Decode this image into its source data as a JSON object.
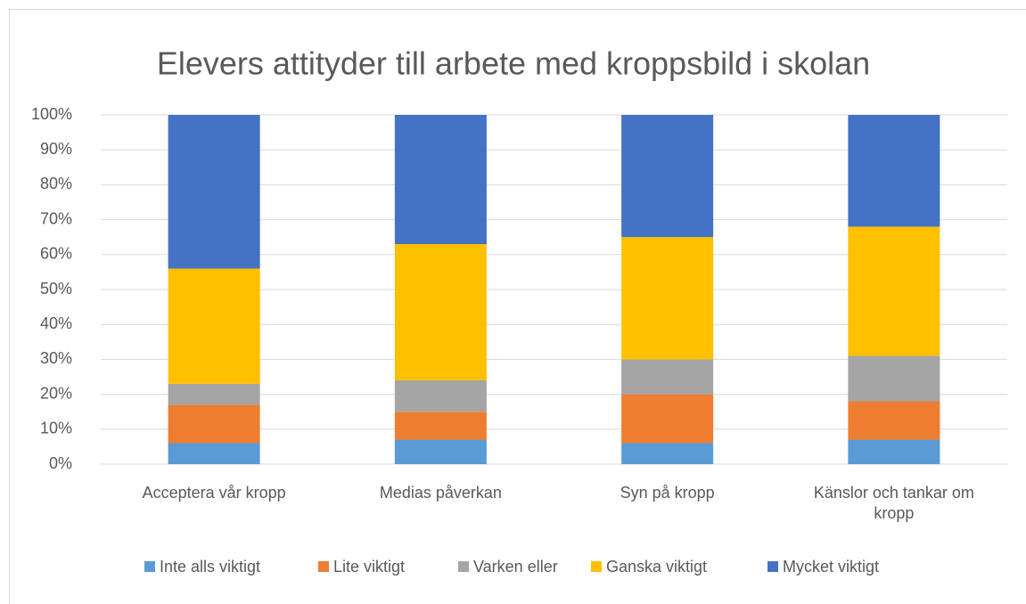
{
  "chart_data": {
    "type": "stacked_bar",
    "title": "Elevers attityder till arbete med kroppsbild i skolan",
    "categories": [
      "Acceptera vår kropp",
      "Medias påverkan",
      "Syn på kropp",
      "Känslor och tankar om kropp"
    ],
    "series": [
      {
        "name": "Inte alls viktigt",
        "color": "#5b9bd5",
        "values": [
          6,
          7,
          6,
          7
        ]
      },
      {
        "name": "Lite viktigt",
        "color": "#ed7d31",
        "values": [
          11,
          8,
          14,
          11
        ]
      },
      {
        "name": "Varken eller",
        "color": "#a5a5a5",
        "values": [
          6,
          9,
          10,
          13
        ]
      },
      {
        "name": "Ganska viktigt",
        "color": "#ffc000",
        "values": [
          33,
          39,
          35,
          37
        ]
      },
      {
        "name": "Mycket viktigt",
        "color": "#4472c4",
        "values": [
          44,
          37,
          35,
          32
        ]
      }
    ],
    "ylim": [
      0,
      100
    ],
    "yticks": [
      {
        "value": 0,
        "label": "0%"
      },
      {
        "value": 10,
        "label": "10%"
      },
      {
        "value": 20,
        "label": "20%"
      },
      {
        "value": 30,
        "label": "30%"
      },
      {
        "value": 40,
        "label": "40%"
      },
      {
        "value": 50,
        "label": "50%"
      },
      {
        "value": 60,
        "label": "60%"
      },
      {
        "value": 70,
        "label": "70%"
      },
      {
        "value": 80,
        "label": "80%"
      },
      {
        "value": 90,
        "label": "90%"
      },
      {
        "value": 100,
        "label": "100%"
      }
    ],
    "grid": true,
    "legend": "bottom"
  }
}
